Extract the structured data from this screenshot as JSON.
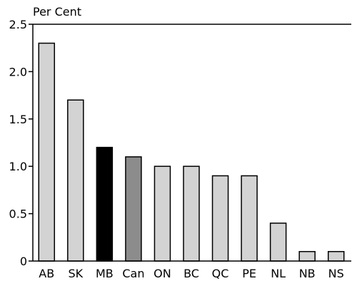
{
  "chart_data": {
    "type": "bar",
    "ylabel": "Per Cent",
    "categories": [
      "AB",
      "SK",
      "MB",
      "Can",
      "ON",
      "BC",
      "QC",
      "PE",
      "NL",
      "NB",
      "NS"
    ],
    "values": [
      2.3,
      1.7,
      1.2,
      1.1,
      1.0,
      1.0,
      0.9,
      0.9,
      0.4,
      0.1,
      0.1
    ],
    "ylim": [
      0,
      2.5
    ],
    "yticks": [
      0,
      0.5,
      1.0,
      1.5,
      2.0,
      2.5
    ],
    "ytick_labels": [
      "0",
      "0.5",
      "1.0",
      "1.5",
      "2.0",
      "2.5"
    ],
    "grid": false,
    "colors": {
      "default": "#d3d3d3",
      "MB": "#000000",
      "Can": "#8c8c8c",
      "outline": "#000000"
    }
  }
}
